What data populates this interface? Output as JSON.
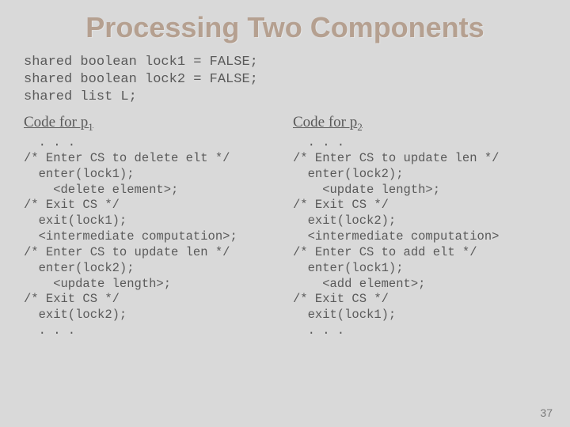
{
  "title": "Processing Two Components",
  "shared": "shared boolean lock1 = FALSE;\nshared boolean lock2 = FALSE;\nshared list L;",
  "left": {
    "heading_prefix": "Code for p",
    "heading_sub": "1",
    "code": "  . . .\n/* Enter CS to delete elt */\n  enter(lock1);\n    <delete element>;\n/* Exit CS */\n  exit(lock1);\n  <intermediate computation>;\n/* Enter CS to update len */\n  enter(lock2);\n    <update length>;\n/* Exit CS */\n  exit(lock2);\n  . . ."
  },
  "right": {
    "heading_prefix": "Code for p",
    "heading_sub": "2",
    "code": "  . . .\n/* Enter CS to update len */\n  enter(lock2);\n    <update length>;\n/* Exit CS */\n  exit(lock2);\n  <intermediate computation>\n/* Enter CS to add elt */\n  enter(lock1);\n    <add element>;\n/* Exit CS */\n  exit(lock1);\n  . . ."
  },
  "page_number": "37",
  "colors": {
    "background": "#d9d9d9",
    "title_color": "#b5a090",
    "text_color": "#5a5a5a"
  }
}
